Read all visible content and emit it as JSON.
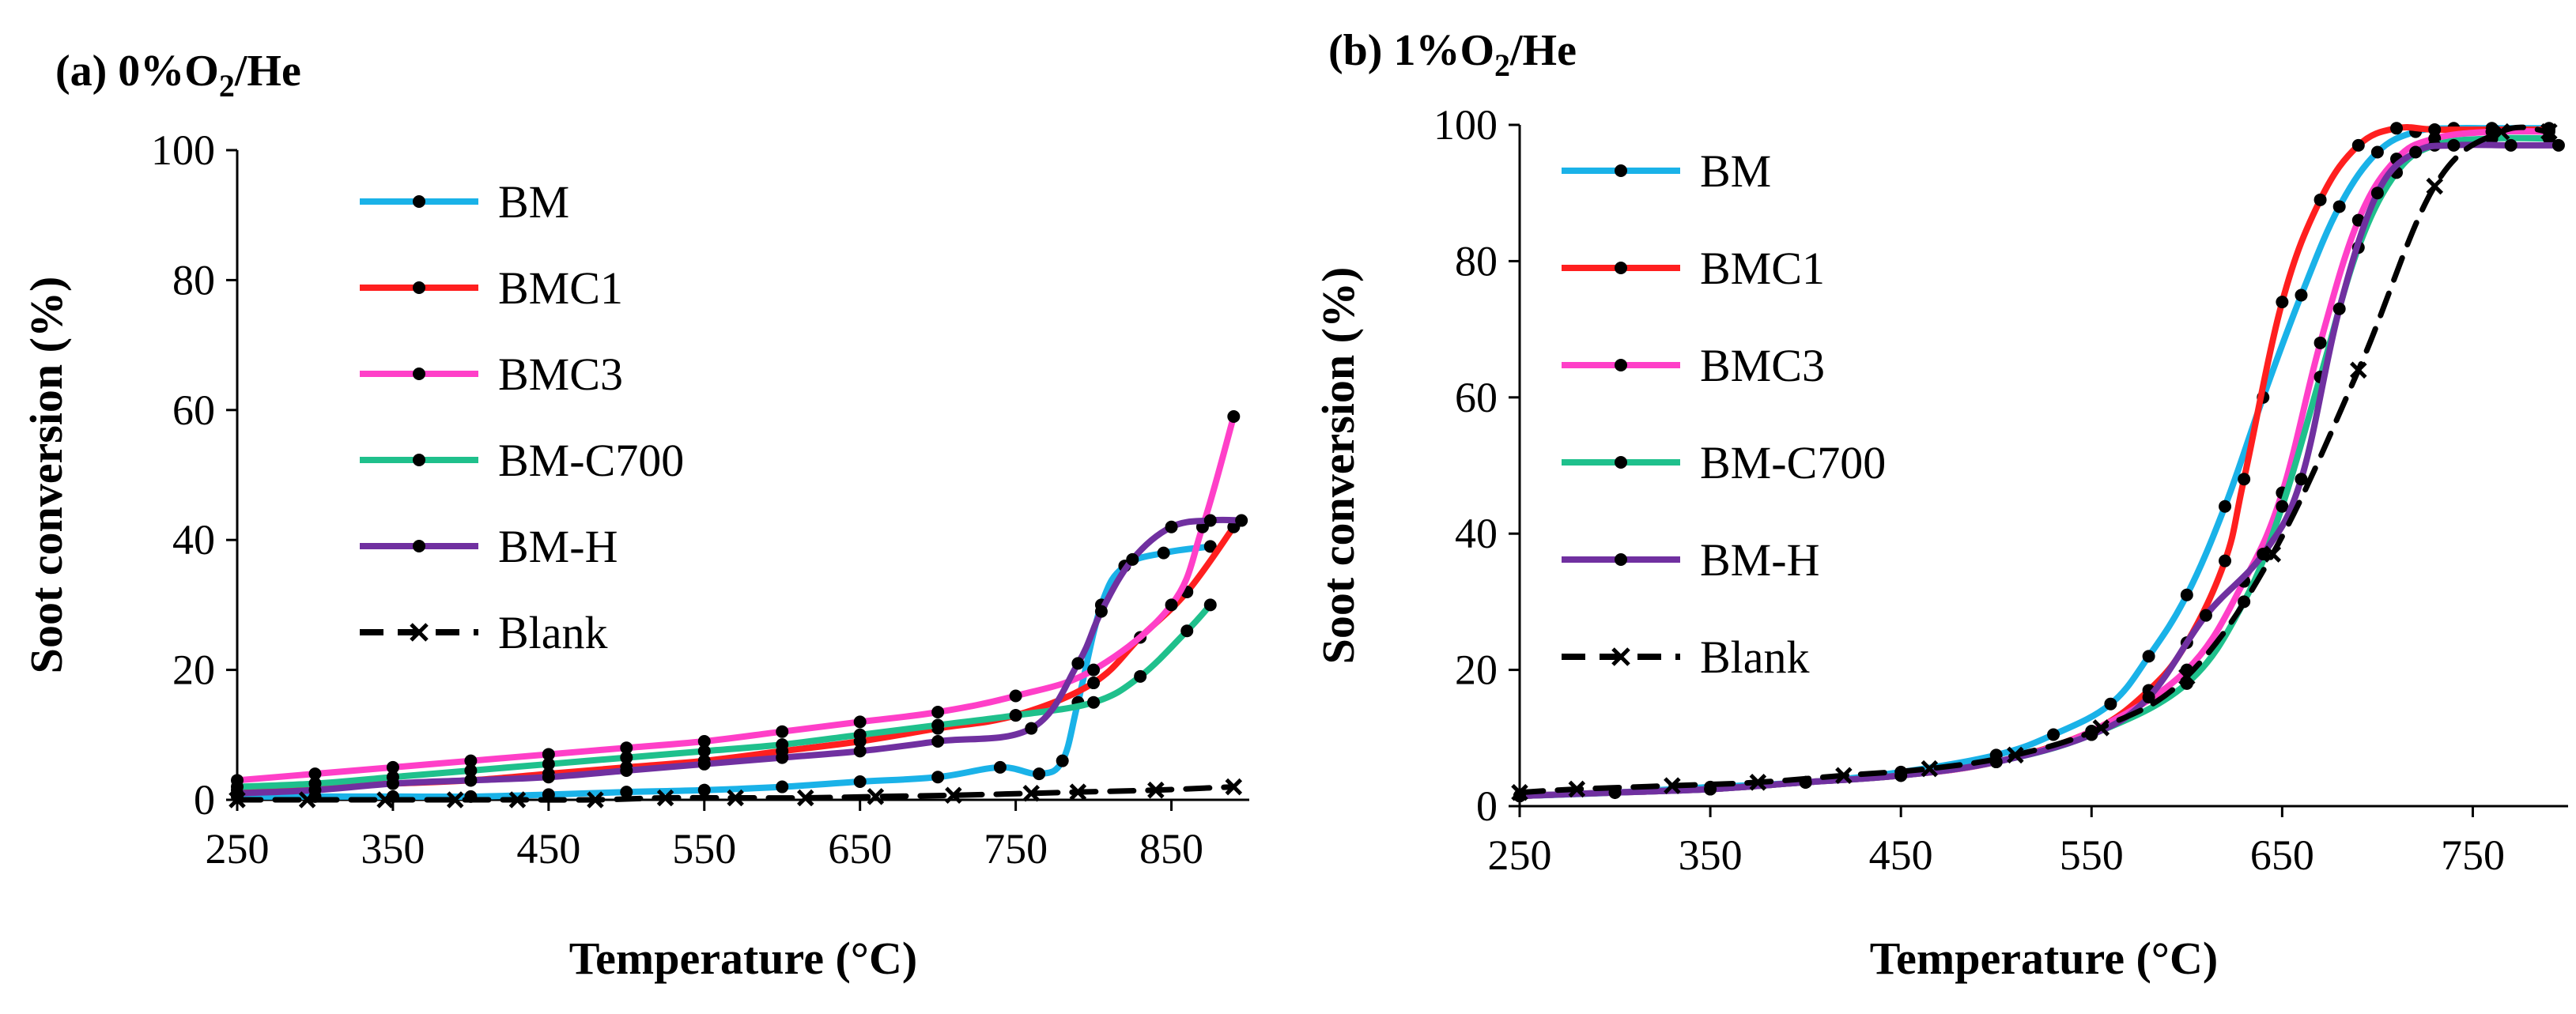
{
  "chart_data": [
    {
      "type": "line",
      "panel_label": "(a) 0%O",
      "panel_subscript": "2",
      "panel_suffix": "/He",
      "xlabel": "Temperature (°C)",
      "ylabel": "Soot conversion (%)",
      "xlim": [
        250,
        900
      ],
      "ylim": [
        0,
        100
      ],
      "xticks": [
        250,
        350,
        450,
        550,
        650,
        750,
        850
      ],
      "yticks": [
        0,
        20,
        40,
        60,
        80,
        100
      ],
      "grid": false,
      "legend_position": "top-left",
      "series": [
        {
          "name": "BM",
          "color": "#1ab2e8",
          "dashed": false,
          "marker": "dot",
          "x": [
            250,
            300,
            350,
            400,
            450,
            500,
            550,
            600,
            650,
            700,
            740,
            765,
            780,
            790,
            805,
            820,
            845,
            875
          ],
          "y": [
            0.5,
            0.5,
            0.5,
            0.5,
            0.8,
            1.2,
            1.5,
            2,
            2.8,
            3.5,
            5,
            4,
            6,
            15,
            30,
            36,
            38,
            39
          ]
        },
        {
          "name": "BMC1",
          "color": "#ff1f1f",
          "dashed": false,
          "marker": "dot",
          "x": [
            250,
            300,
            350,
            400,
            450,
            500,
            550,
            600,
            650,
            700,
            750,
            800,
            830,
            860,
            890
          ],
          "y": [
            1.5,
            2,
            2.5,
            3,
            4,
            5,
            6,
            7.5,
            9,
            11,
            13,
            18,
            25,
            32,
            42
          ]
        },
        {
          "name": "BMC3",
          "color": "#ff3fc8",
          "dashed": false,
          "marker": "dot",
          "x": [
            250,
            300,
            350,
            400,
            450,
            500,
            550,
            600,
            650,
            700,
            750,
            800,
            850,
            870,
            890
          ],
          "y": [
            3,
            4,
            5,
            6,
            7,
            8,
            9,
            10.5,
            12,
            13.5,
            16,
            20,
            30,
            42,
            59
          ]
        },
        {
          "name": "BM-C700",
          "color": "#1fc08c",
          "dashed": false,
          "marker": "dot",
          "x": [
            250,
            300,
            350,
            400,
            450,
            500,
            550,
            600,
            650,
            700,
            750,
            800,
            830,
            860,
            875
          ],
          "y": [
            2,
            2.5,
            3.5,
            4.5,
            5.5,
            6.5,
            7.5,
            8.5,
            10,
            11.5,
            13,
            15,
            19,
            26,
            30
          ]
        },
        {
          "name": "BM-H",
          "color": "#7030a0",
          "dashed": false,
          "marker": "dot",
          "x": [
            250,
            300,
            350,
            400,
            450,
            500,
            550,
            600,
            650,
            700,
            760,
            790,
            805,
            825,
            850,
            875,
            895
          ],
          "y": [
            1,
            1.5,
            2.5,
            3,
            3.5,
            4.5,
            5.5,
            6.5,
            7.5,
            9,
            11,
            21,
            29,
            37,
            42,
            43,
            43
          ]
        },
        {
          "name": "Blank",
          "color": "#000000",
          "dashed": true,
          "marker": "x",
          "x": [
            250,
            295,
            345,
            390,
            430,
            480,
            525,
            570,
            615,
            660,
            710,
            760,
            790,
            840,
            890
          ],
          "y": [
            0,
            0,
            0,
            0,
            0,
            0,
            0.3,
            0.3,
            0.3,
            0.5,
            0.7,
            1,
            1.2,
            1.5,
            2
          ]
        }
      ]
    },
    {
      "type": "line",
      "panel_label": "(b) 1%O",
      "panel_subscript": "2",
      "panel_suffix": "/He",
      "xlabel": "Temperature (°C)",
      "ylabel": "Soot conversion (%)",
      "xlim": [
        250,
        800
      ],
      "ylim": [
        0,
        100
      ],
      "xticks": [
        250,
        350,
        450,
        550,
        650,
        750
      ],
      "yticks": [
        0,
        20,
        40,
        60,
        80,
        100
      ],
      "grid": false,
      "legend_position": "top-left",
      "series": [
        {
          "name": "BM",
          "color": "#1ab2e8",
          "dashed": false,
          "marker": "dot",
          "x": [
            250,
            300,
            350,
            400,
            450,
            500,
            530,
            560,
            580,
            600,
            620,
            640,
            660,
            680,
            700,
            720,
            740,
            760,
            790
          ],
          "y": [
            1.5,
            2,
            2.8,
            3.5,
            5,
            7.5,
            10.5,
            15,
            22,
            31,
            44,
            60,
            75,
            88,
            96,
            99,
            99.5,
            99.5,
            99.5
          ]
        },
        {
          "name": "BMC1",
          "color": "#ff1f1f",
          "dashed": false,
          "marker": "dot",
          "x": [
            250,
            300,
            350,
            400,
            450,
            500,
            550,
            580,
            600,
            620,
            630,
            650,
            670,
            690,
            710,
            730,
            760,
            790
          ],
          "y": [
            1.5,
            2,
            2.5,
            3.5,
            4.5,
            6.5,
            11,
            17,
            24,
            36,
            48,
            74,
            89,
            97,
            99.5,
            99.3,
            99.3,
            99.3
          ]
        },
        {
          "name": "BMC3",
          "color": "#ff3fc8",
          "dashed": false,
          "marker": "dot",
          "x": [
            250,
            300,
            350,
            400,
            450,
            500,
            550,
            600,
            630,
            650,
            670,
            690,
            710,
            730,
            760,
            790
          ],
          "y": [
            1.5,
            2,
            2.5,
            3.5,
            4.5,
            6.5,
            11,
            20,
            33,
            46,
            68,
            86,
            95,
            98,
            99,
            99
          ]
        },
        {
          "name": "BM-C700",
          "color": "#1fc08c",
          "dashed": false,
          "marker": "dot",
          "x": [
            250,
            300,
            350,
            400,
            450,
            500,
            550,
            600,
            630,
            650,
            670,
            690,
            710,
            730,
            760,
            790
          ],
          "y": [
            1.5,
            2,
            2.5,
            3.5,
            4.5,
            6.5,
            10.5,
            18,
            30,
            44,
            63,
            82,
            93,
            97,
            98,
            98
          ]
        },
        {
          "name": "BM-H",
          "color": "#7030a0",
          "dashed": false,
          "marker": "dot",
          "x": [
            250,
            300,
            350,
            400,
            450,
            500,
            550,
            580,
            610,
            640,
            660,
            680,
            700,
            720,
            740,
            770,
            795
          ],
          "y": [
            1.5,
            2,
            2.5,
            3.5,
            4.5,
            6.5,
            10.5,
            16,
            28,
            37,
            48,
            73,
            90,
            96,
            97,
            97,
            97
          ]
        },
        {
          "name": "Blank",
          "color": "#000000",
          "dashed": true,
          "marker": "x",
          "x": [
            250,
            280,
            330,
            375,
            420,
            465,
            510,
            555,
            600,
            645,
            690,
            730,
            765,
            790
          ],
          "y": [
            2,
            2.5,
            3,
            3.5,
            4.5,
            5.5,
            7.5,
            11.5,
            19,
            37,
            64,
            91,
            99,
            99
          ]
        }
      ]
    }
  ]
}
